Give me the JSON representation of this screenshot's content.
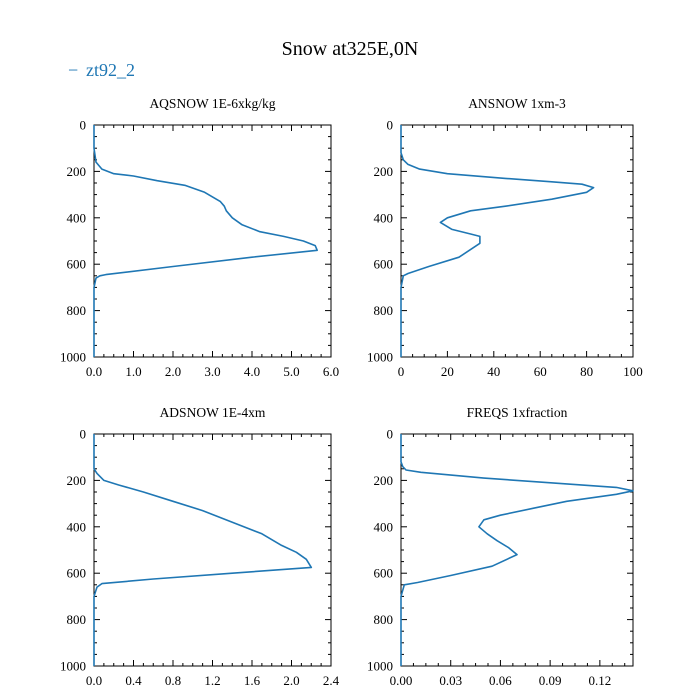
{
  "figure": {
    "title": "Snow at325E,0N",
    "legend": {
      "label": "zt92_2",
      "marker": "−",
      "color": "#1f77b4"
    }
  },
  "chart_data": [
    {
      "type": "line",
      "title": "AQSNOW  1E-6xkg/kg",
      "xlim": [
        0,
        6
      ],
      "ylim": [
        0,
        1000
      ],
      "y_inverted": true,
      "xticks": [
        0,
        1,
        2,
        3,
        4,
        5,
        6
      ],
      "xtick_labels": [
        "0.0",
        "1.0",
        "2.0",
        "3.0",
        "4.0",
        "5.0",
        "6.0"
      ],
      "yticks": [
        0,
        200,
        400,
        600,
        800,
        1000
      ],
      "ytick_labels": [
        "0",
        "200",
        "400",
        "600",
        "800",
        "1000"
      ],
      "series": [
        {
          "name": "zt92_2",
          "x": [
            0,
            0.0,
            0.05,
            0.2,
            0.5,
            1.0,
            1.6,
            2.3,
            2.8,
            3.2,
            3.3,
            3.35,
            3.5,
            3.75,
            4.2,
            4.8,
            5.3,
            5.6,
            5.65,
            4.0,
            2.0,
            0.3,
            0.15,
            0.05,
            0.0,
            0.0,
            0
          ],
          "y": [
            0,
            100,
            160,
            190,
            210,
            220,
            240,
            260,
            290,
            330,
            350,
            370,
            400,
            430,
            460,
            480,
            500,
            520,
            540,
            570,
            610,
            645,
            650,
            660,
            700,
            850,
            1000
          ]
        }
      ]
    },
    {
      "type": "line",
      "title": "ANSNOW  1xm-3",
      "xlim": [
        0,
        100
      ],
      "ylim": [
        0,
        1000
      ],
      "y_inverted": true,
      "xticks": [
        0,
        20,
        40,
        60,
        80,
        100
      ],
      "xtick_labels": [
        "0",
        "20",
        "40",
        "60",
        "80",
        "100"
      ],
      "yticks": [
        0,
        200,
        400,
        600,
        800,
        1000
      ],
      "ytick_labels": [
        "0",
        "200",
        "400",
        "600",
        "800",
        "1000"
      ],
      "series": [
        {
          "name": "zt92_2",
          "x": [
            0,
            0,
            1,
            3,
            8,
            20,
            45,
            65,
            78,
            83,
            80,
            65,
            45,
            30,
            20,
            17,
            22,
            30,
            34,
            34,
            25,
            12,
            3,
            1,
            0,
            0
          ],
          "y": [
            0,
            120,
            150,
            170,
            190,
            210,
            230,
            245,
            255,
            270,
            290,
            320,
            350,
            370,
            400,
            420,
            450,
            470,
            480,
            510,
            570,
            610,
            640,
            650,
            700,
            1000
          ]
        }
      ]
    },
    {
      "type": "line",
      "title": "ADSNOW  1E-4xm",
      "xlim": [
        0,
        2.4
      ],
      "ylim": [
        0,
        1000
      ],
      "y_inverted": true,
      "xticks": [
        0,
        0.4,
        0.8,
        1.2,
        1.6,
        2.0,
        2.4
      ],
      "xtick_labels": [
        "0.0",
        "0.4",
        "0.8",
        "1.2",
        "1.6",
        "2.0",
        "2.4"
      ],
      "yticks": [
        0,
        200,
        400,
        600,
        800,
        1000
      ],
      "ytick_labels": [
        "0",
        "200",
        "400",
        "600",
        "800",
        "1000"
      ],
      "series": [
        {
          "name": "zt92_2",
          "x": [
            0,
            0.0,
            0.03,
            0.1,
            0.25,
            0.5,
            0.8,
            1.1,
            1.4,
            1.7,
            1.9,
            2.05,
            2.15,
            2.2,
            1.4,
            0.6,
            0.08,
            0.03,
            0.0,
            0
          ],
          "y": [
            0,
            150,
            170,
            200,
            220,
            250,
            290,
            330,
            380,
            430,
            480,
            510,
            540,
            575,
            600,
            625,
            645,
            660,
            700,
            1000
          ]
        }
      ]
    },
    {
      "type": "line",
      "title": "FREQS  1xfraction",
      "xlim": [
        0,
        0.14
      ],
      "ylim": [
        0,
        1000
      ],
      "y_inverted": true,
      "xticks": [
        0,
        0.03,
        0.06,
        0.09,
        0.12
      ],
      "xtick_labels": [
        "0.00",
        "0.03",
        "0.06",
        "0.09",
        "0.12"
      ],
      "yticks": [
        0,
        200,
        400,
        600,
        800,
        1000
      ],
      "ytick_labels": [
        "0",
        "200",
        "400",
        "600",
        "800",
        "1000"
      ],
      "series": [
        {
          "name": "zt92_2",
          "x": [
            0,
            0,
            0.001,
            0.003,
            0.012,
            0.05,
            0.1,
            0.13,
            0.14,
            0.13,
            0.1,
            0.08,
            0.06,
            0.05,
            0.047,
            0.052,
            0.058,
            0.065,
            0.07,
            0.055,
            0.03,
            0.01,
            0.002,
            0.0,
            0
          ],
          "y": [
            0,
            120,
            140,
            155,
            165,
            190,
            215,
            230,
            245,
            260,
            290,
            320,
            350,
            370,
            400,
            430,
            460,
            490,
            520,
            570,
            610,
            640,
            650,
            700,
            1000
          ]
        }
      ]
    }
  ]
}
